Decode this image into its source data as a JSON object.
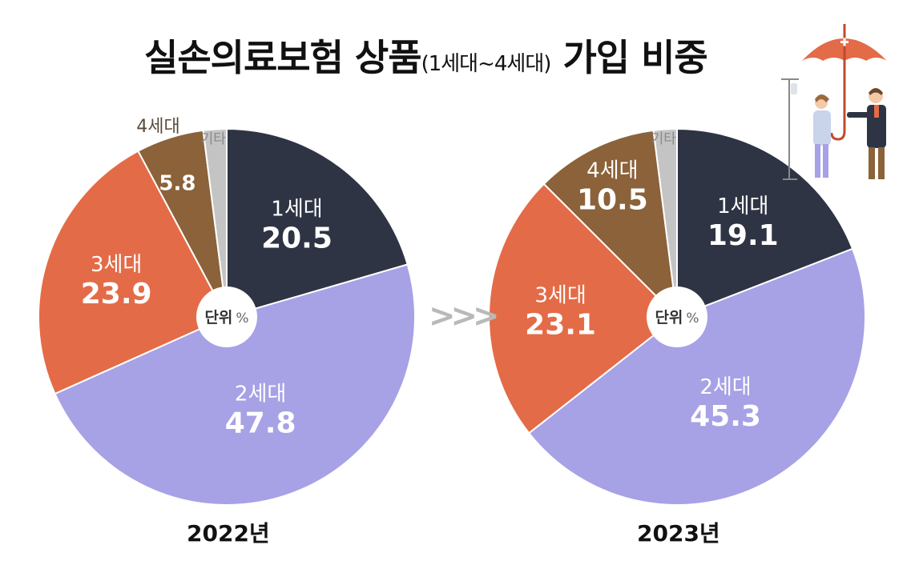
{
  "title": {
    "main": "실손의료보험 상품",
    "sub": "(1세대~4세대)",
    "tail": "가입 비중"
  },
  "center_label": {
    "unit_text": "단위",
    "unit_symbol": "%"
  },
  "arrow_symbol": ">>>",
  "colors": {
    "gen1": "#2e3443",
    "gen2": "#a7a1e6",
    "gen3": "#e46b47",
    "gen4": "#8b6239",
    "other": "#c4c4c4"
  },
  "chart_data": [
    {
      "type": "pie",
      "year_label": "2022년",
      "slices": [
        {
          "name": "1세대",
          "value": 20.5,
          "color": "#2e3443",
          "value_label": "20.5"
        },
        {
          "name": "2세대",
          "value": 47.8,
          "color": "#a7a1e6",
          "value_label": "47.8"
        },
        {
          "name": "3세대",
          "value": 23.9,
          "color": "#e46b47",
          "value_label": "23.9"
        },
        {
          "name": "4세대",
          "value": 5.8,
          "color": "#8b6239",
          "value_label": "5.8"
        },
        {
          "name": "기타",
          "value": 2.0,
          "color": "#c4c4c4",
          "value_label": ""
        }
      ]
    },
    {
      "type": "pie",
      "year_label": "2023년",
      "slices": [
        {
          "name": "1세대",
          "value": 19.1,
          "color": "#2e3443",
          "value_label": "19.1"
        },
        {
          "name": "2세대",
          "value": 45.3,
          "color": "#a7a1e6",
          "value_label": "45.3"
        },
        {
          "name": "3세대",
          "value": 23.1,
          "color": "#e46b47",
          "value_label": "23.1"
        },
        {
          "name": "4세대",
          "value": 10.5,
          "color": "#8b6239",
          "value_label": "10.5"
        },
        {
          "name": "기타",
          "value": 2.0,
          "color": "#c4c4c4",
          "value_label": ""
        }
      ]
    }
  ]
}
